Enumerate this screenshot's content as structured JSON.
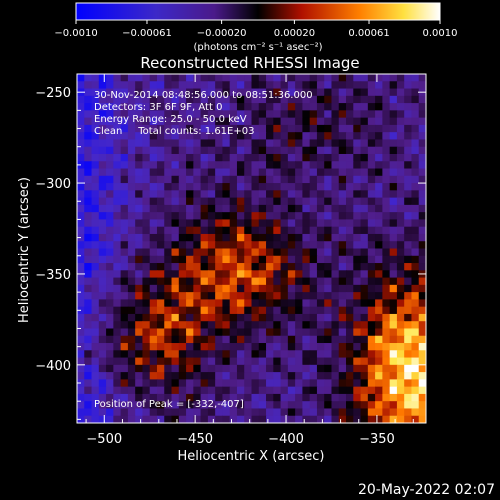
{
  "chart_data": {
    "type": "heatmap",
    "title": "Reconstructed RHESSI Image",
    "xlabel": "Heliocentric X (arcsec)",
    "ylabel": "Heliocentric Y (arcsec)",
    "xlim": [
      -515,
      -323
    ],
    "ylim": [
      -432,
      -240
    ],
    "xticks": [
      -500,
      -450,
      -400,
      -350
    ],
    "yticks": [
      -250,
      -300,
      -350,
      -400
    ],
    "colorbar": {
      "min": -0.001,
      "max": 0.001,
      "ticks": [
        {
          "value": -0.001,
          "label": "-0.0010"
        },
        {
          "value": -0.00061,
          "label": "-0.00061"
        },
        {
          "value": -0.0002,
          "label": "-0.00020"
        },
        {
          "value": 0.0002,
          "label": "0.00020"
        },
        {
          "value": 0.00061,
          "label": "0.00061"
        },
        {
          "value": 0.001,
          "label": "0.0010"
        }
      ],
      "unit_label": "(photons cm⁻² s⁻¹ asec⁻²)"
    },
    "annotations": {
      "time_range": "30-Nov-2014 08:48:56.000 to 08:51:36.000",
      "detectors": "Detectors: 3F 6F 9F, Att 0",
      "energy": "Energy Range: 25.0 - 50.0 keV",
      "clean": "Clean     Total counts: 1.61E+03",
      "peak": "Position of Peak = [-332,-407]"
    },
    "peak_position": [
      -332,
      -407
    ],
    "colors": {
      "stops": [
        "#0000ff",
        "#5a1eb4",
        "#3a1060",
        "#000000",
        "#cc1800",
        "#ff9a00",
        "#ffff90",
        "#ffffff"
      ]
    }
  },
  "footer": {
    "timestamp": "20-May-2022 02:07"
  }
}
